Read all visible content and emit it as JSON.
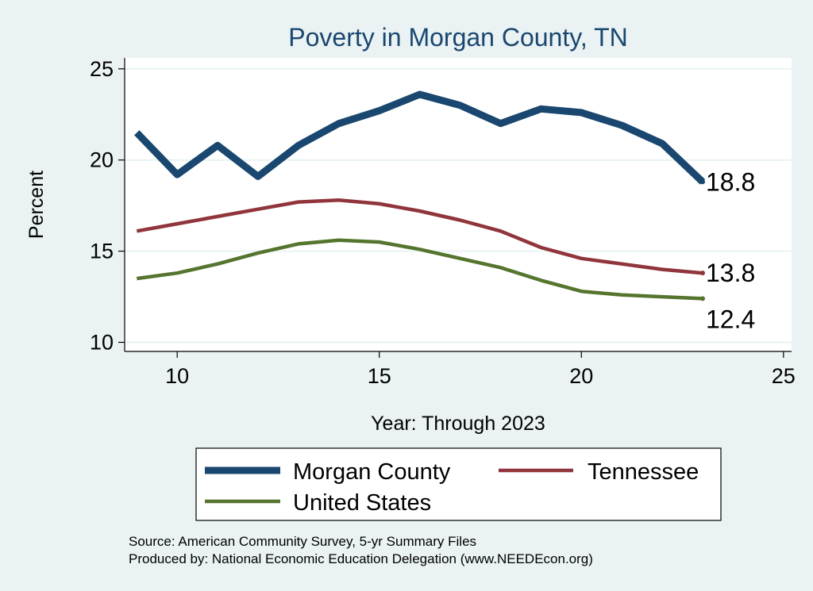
{
  "chart_data": {
    "type": "line",
    "title": "Poverty in Morgan County, TN",
    "xlabel": "Year: Through 2023",
    "ylabel": "Percent",
    "xlim": [
      8.7,
      25.2
    ],
    "ylim": [
      9.5,
      25.6
    ],
    "xticks": [
      10,
      15,
      20,
      25
    ],
    "yticks": [
      10,
      15,
      20,
      25
    ],
    "grid": "horizontal",
    "legend_position": "bottom",
    "series": [
      {
        "name": "Morgan County",
        "color": "#1a476f",
        "x": [
          9,
          10,
          11,
          12,
          13,
          14,
          15,
          16,
          17,
          18,
          19,
          20,
          21,
          22,
          23
        ],
        "values": [
          21.5,
          19.2,
          20.8,
          19.1,
          20.8,
          22.0,
          22.7,
          23.6,
          23.0,
          22.0,
          22.8,
          22.6,
          21.9,
          20.9,
          18.8
        ],
        "end_label": "18.8"
      },
      {
        "name": "Tennessee",
        "color": "#90353b",
        "x": [
          9,
          10,
          11,
          12,
          13,
          14,
          15,
          16,
          17,
          18,
          19,
          20,
          21,
          22,
          23
        ],
        "values": [
          16.1,
          16.5,
          16.9,
          17.3,
          17.7,
          17.8,
          17.6,
          17.2,
          16.7,
          16.1,
          15.2,
          14.6,
          14.3,
          14.0,
          13.8
        ],
        "end_label": "13.8"
      },
      {
        "name": "United States",
        "color": "#55752f",
        "x": [
          9,
          10,
          11,
          12,
          13,
          14,
          15,
          16,
          17,
          18,
          19,
          20,
          21,
          22,
          23
        ],
        "values": [
          13.5,
          13.8,
          14.3,
          14.9,
          15.4,
          15.6,
          15.5,
          15.1,
          14.6,
          14.1,
          13.4,
          12.8,
          12.6,
          12.5,
          12.4
        ],
        "end_label": "12.4"
      }
    ],
    "notes": [
      "Source: American Community Survey, 5-yr Summary Files",
      "Produced by: National Economic Education Delegation (www.NEEDEcon.org)"
    ]
  }
}
